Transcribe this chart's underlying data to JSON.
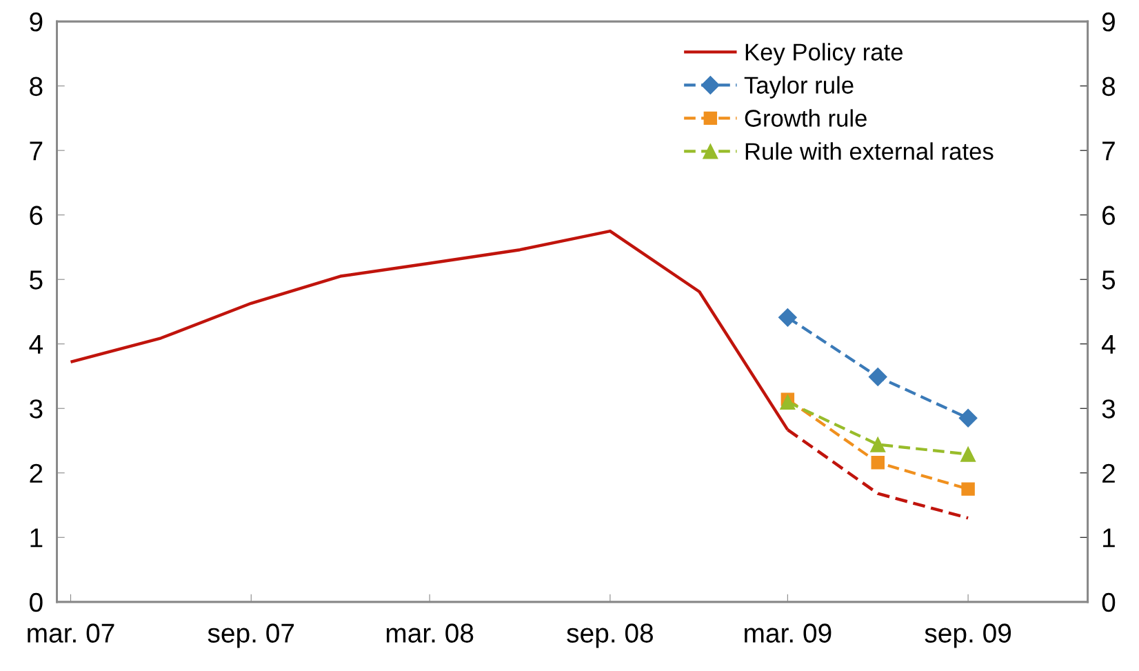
{
  "chart_data": {
    "type": "line",
    "x": [
      "2007-03",
      "2007-06",
      "2007-09",
      "2007-12",
      "2008-03",
      "2008-06",
      "2008-09",
      "2008-12",
      "2009-03",
      "2009-06",
      "2009-09"
    ],
    "series": [
      {
        "name": "Key Policy rate",
        "color": "#c0140c",
        "line_style": "solid",
        "marker": "none",
        "values": [
          3.72,
          4.09,
          4.63,
          5.05,
          5.25,
          5.46,
          5.75,
          4.81,
          2.67,
          null,
          null
        ]
      },
      {
        "name": "Taylor rule",
        "color": "#3a7ab8",
        "line_style": "dashed",
        "marker": "diamond",
        "values": [
          null,
          null,
          null,
          null,
          null,
          null,
          null,
          null,
          4.41,
          3.49,
          2.85
        ]
      },
      {
        "name": "Growth rule",
        "color": "#f0901e",
        "line_style": "dashed",
        "marker": "square",
        "values": [
          null,
          null,
          null,
          null,
          null,
          null,
          null,
          null,
          3.14,
          2.16,
          1.75
        ]
      },
      {
        "name": "Rule with external rates",
        "color": "#98bc2a",
        "line_style": "dashed",
        "marker": "triangle",
        "values": [
          null,
          null,
          null,
          null,
          null,
          null,
          null,
          null,
          3.1,
          2.44,
          2.29
        ]
      },
      {
        "color": "#c0140c",
        "line_style": "dashed",
        "marker": "none",
        "values": [
          null,
          null,
          null,
          null,
          null,
          null,
          null,
          null,
          2.67,
          1.68,
          1.3
        ]
      }
    ],
    "xlim": [
      "2007-02-15",
      "2010-01-01"
    ],
    "xticks": [
      {
        "value": "2007-03",
        "label": "mar. 07"
      },
      {
        "value": "2007-09",
        "label": "sep. 07"
      },
      {
        "value": "2008-03",
        "label": "mar. 08"
      },
      {
        "value": "2008-09",
        "label": "sep. 08"
      },
      {
        "value": "2009-03",
        "label": "mar. 09"
      },
      {
        "value": "2009-09",
        "label": "sep. 09"
      }
    ],
    "ylim": [
      0,
      9
    ],
    "yticks": [
      0,
      1,
      2,
      3,
      4,
      5,
      6,
      7,
      8,
      9
    ],
    "y2lim": [
      0,
      9
    ],
    "y2ticks": [
      0,
      1,
      2,
      3,
      4,
      5,
      6,
      7,
      8,
      9
    ],
    "legend": "top right",
    "grid": false
  }
}
